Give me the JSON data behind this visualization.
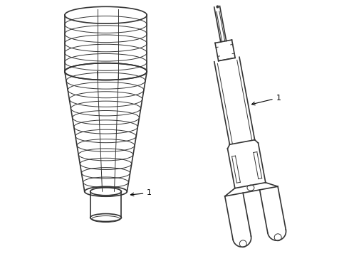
{
  "bg_color": "#ffffff",
  "line_color": "#333333",
  "label_color": "#000000",
  "figsize": [
    4.9,
    3.6
  ],
  "dpi": 100,
  "label1_text": "1",
  "label2_text": "1"
}
